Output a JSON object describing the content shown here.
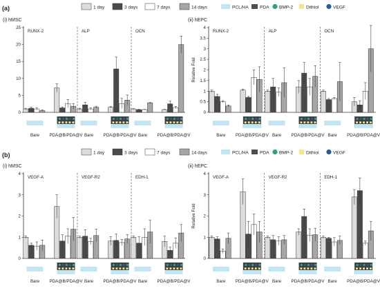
{
  "colors": {
    "day1": "#dcdcdc",
    "day3": "#4a4a4a",
    "day7": "#ffffff",
    "day14": "#a6a6a6",
    "pcl": "#bfe6f2",
    "pda": "#4d4d4d",
    "bmp": "#2f9f86",
    "dithiol": "#f4e58c",
    "vegf": "#1f5f9a",
    "bar_stroke": "#333333"
  },
  "legend": {
    "days": [
      "1 day",
      "3 days",
      "7 days",
      "14 days"
    ],
    "materials": [
      "PCL/HA",
      "PDA",
      "BMP-2",
      "Dithiol",
      "VEGF"
    ]
  },
  "rows": [
    {
      "letter": "(a)",
      "panels": [
        {
          "subtitle": "(i) hMSC",
          "ylabel": "",
          "ylim": [
            0,
            25
          ],
          "yticks": [
            0,
            5,
            10,
            15,
            20,
            25
          ],
          "groups": [
            "RUNX-2",
            "ALP",
            "OCN"
          ],
          "xlabels": [
            "Bare",
            "PDA@B/PDA@V"
          ]
        },
        {
          "subtitle": "(ii) hEPC",
          "ylabel": "Relative Fold",
          "ylim": [
            0,
            4
          ],
          "yticks": [
            0,
            0.5,
            1,
            1.5,
            2,
            2.5,
            3,
            3.5,
            4
          ],
          "groups": [
            "RUNX-2",
            "ALP",
            "OCN"
          ],
          "xlabels": [
            "Bare",
            "PDA@B/PDA@V"
          ]
        }
      ]
    },
    {
      "letter": "(b)",
      "panels": [
        {
          "subtitle": "(i) hMSC",
          "ylabel": "",
          "ylim": [
            0,
            4
          ],
          "yticks": [
            0,
            1,
            2,
            3,
            4
          ],
          "groups": [
            "VEGF-A",
            "VEGF-R2",
            "EDH-1"
          ],
          "xlabels": [
            "Bare",
            "PDA@B/PDA@V"
          ]
        },
        {
          "subtitle": "(ii) hEPC",
          "ylabel": "Relative Fold",
          "ylim": [
            0,
            4
          ],
          "yticks": [
            0,
            1,
            2,
            3,
            4
          ],
          "groups": [
            "VEGF-A",
            "VEGF-R2",
            "EDH-1"
          ],
          "xlabels": [
            "Bare",
            "PDA@B/PDA@V"
          ]
        }
      ]
    }
  ],
  "chart_data": [
    {
      "type": "bar",
      "subtitle": "(i) hMSC",
      "ylim": [
        0,
        25
      ],
      "groups": [
        "RUNX-2",
        "ALP",
        "OCN"
      ],
      "conditions": [
        "Bare",
        "PDA@B/PDA@V"
      ],
      "series": [
        {
          "name": "1 day",
          "values": [
            1.0,
            7.2,
            1.0,
            1.5,
            1.0,
            0.8
          ],
          "errors": [
            0.2,
            1.2,
            0.2,
            0.2,
            0.1,
            0.1
          ]
        },
        {
          "name": "3 days",
          "values": [
            1.2,
            1.3,
            2.2,
            12.8,
            0.8,
            2.5
          ],
          "errors": [
            0.3,
            0.3,
            0.8,
            3.5,
            0.1,
            0.8
          ]
        },
        {
          "name": "7 days",
          "values": [
            1.0,
            2.6,
            1.0,
            2.6,
            0.8,
            1.4
          ],
          "errors": [
            0.4,
            1.2,
            0.3,
            1.5,
            0.1,
            0.3
          ]
        },
        {
          "name": "14 days",
          "values": [
            0.5,
            1.8,
            1.5,
            3.6,
            2.8,
            20.0
          ],
          "errors": [
            0.2,
            0.8,
            0.3,
            1.5,
            0.1,
            2.5
          ]
        }
      ]
    },
    {
      "type": "bar",
      "subtitle": "(ii) hEPC",
      "ylabel": "Relative Fold",
      "ylim": [
        0,
        4
      ],
      "groups": [
        "RUNX-2",
        "ALP",
        "OCN"
      ],
      "conditions": [
        "Bare",
        "PDA@B/PDA@V"
      ],
      "series": [
        {
          "name": "1 day",
          "values": [
            1.0,
            1.05,
            1.0,
            1.2,
            1.0,
            0.5
          ],
          "errors": [
            0.05,
            0.05,
            0.05,
            0.3,
            0.05,
            0.2
          ]
        },
        {
          "name": "3 days",
          "values": [
            0.75,
            0.7,
            1.2,
            1.85,
            0.6,
            0.35
          ],
          "errors": [
            0.1,
            0.05,
            0.4,
            0.5,
            0.05,
            0.2
          ]
        },
        {
          "name": "7 days",
          "values": [
            0.5,
            1.65,
            0.95,
            1.2,
            0.65,
            1.0
          ],
          "errors": [
            0.05,
            0.35,
            0.2,
            0.4,
            0.05,
            0.4
          ]
        },
        {
          "name": "14 days",
          "values": [
            0.3,
            1.55,
            1.4,
            1.7,
            1.45,
            3.0
          ],
          "errors": [
            0.05,
            0.6,
            0.7,
            0.5,
            0.9,
            1.1
          ]
        }
      ]
    },
    {
      "type": "bar",
      "subtitle": "(i) hMSC",
      "ylim": [
        0,
        4
      ],
      "groups": [
        "VEGF-A",
        "VEGF-R2",
        "EDH-1"
      ],
      "conditions": [
        "Bare",
        "PDA@B/PDA@V"
      ],
      "series": [
        {
          "name": "1 day",
          "values": [
            1.0,
            2.45,
            1.0,
            0.82,
            1.0,
            0.8
          ],
          "errors": [
            0.05,
            0.55,
            0.05,
            0.2,
            0.05,
            0.25
          ]
        },
        {
          "name": "3 days",
          "values": [
            0.62,
            0.82,
            1.05,
            0.85,
            0.72,
            0.38
          ],
          "errors": [
            0.1,
            0.3,
            0.3,
            0.3,
            0.3,
            0.15
          ]
        },
        {
          "name": "7 days",
          "values": [
            0.58,
            1.05,
            0.8,
            0.75,
            1.0,
            0.72
          ],
          "errors": [
            0.2,
            0.35,
            0.15,
            0.15,
            0.4,
            0.25
          ]
        },
        {
          "name": "14 days",
          "values": [
            0.62,
            1.38,
            1.08,
            0.92,
            1.25,
            1.2
          ],
          "errors": [
            0.25,
            0.55,
            0.3,
            0.2,
            0.55,
            0.4
          ]
        }
      ]
    },
    {
      "type": "bar",
      "subtitle": "(ii) hEPC",
      "ylabel": "Relative Fold",
      "ylim": [
        0,
        4
      ],
      "groups": [
        "VEGF-A",
        "VEGF-R2",
        "EDH-1"
      ],
      "conditions": [
        "Bare",
        "PDA@B/PDA@V"
      ],
      "series": [
        {
          "name": "1 day",
          "values": [
            1.0,
            3.15,
            1.0,
            1.25,
            1.0,
            2.9
          ],
          "errors": [
            0.05,
            0.6,
            0.05,
            0.15,
            0.05,
            0.35
          ]
        },
        {
          "name": "3 days",
          "values": [
            0.92,
            1.15,
            0.88,
            1.98,
            0.95,
            3.2
          ],
          "errors": [
            0.1,
            0.6,
            0.2,
            0.35,
            0.05,
            0.6
          ]
        },
        {
          "name": "7 days",
          "values": [
            0.35,
            1.6,
            0.82,
            1.1,
            0.78,
            0.72
          ],
          "errors": [
            0.1,
            0.5,
            0.2,
            0.3,
            0.2,
            0.1
          ]
        },
        {
          "name": "14 days",
          "values": [
            0.95,
            1.25,
            0.88,
            1.12,
            0.85,
            1.3
          ],
          "errors": [
            0.25,
            0.5,
            0.2,
            0.3,
            0.2,
            0.45
          ]
        }
      ]
    }
  ]
}
